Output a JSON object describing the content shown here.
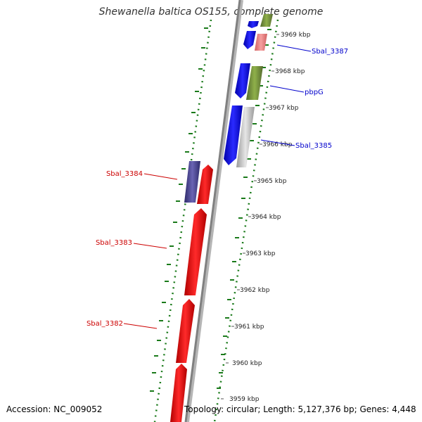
{
  "title": "Shewanella baltica OS155, complete genome",
  "footer": {
    "accession": "Accession: NC_009052",
    "topology": "Topology: circular; Length: 5,127,376 bp; Genes: 4,448"
  },
  "scale_labels": [
    "3969 kbp",
    "3968 kbp",
    "3967 kbp",
    "3966 kbp",
    "3965 kbp",
    "3964 kbp",
    "3963 kbp",
    "3962 kbp",
    "3961 kbp",
    "3960 kbp",
    "3959 kbp"
  ],
  "gene_labels": {
    "sbal_3387": "Sbal_3387",
    "pbpg": "pbpG",
    "sbal_3385": "Sbal_3385",
    "sbal_3384": "Sbal_3384",
    "sbal_3383": "Sbal_3383",
    "sbal_3382": "Sbal_3382"
  },
  "colors": {
    "forward_cds": "#0000ee",
    "reverse_cds": "#ee0000",
    "rna": "#6b8e23",
    "pink_feature": "#f08080",
    "gray_feature": "#c0c0c0",
    "purple_feature": "#483d8b",
    "gc_dots": "#1a7a1a",
    "backbone": "#808080",
    "forward_label": "#0000cc",
    "reverse_label": "#cc0000"
  }
}
